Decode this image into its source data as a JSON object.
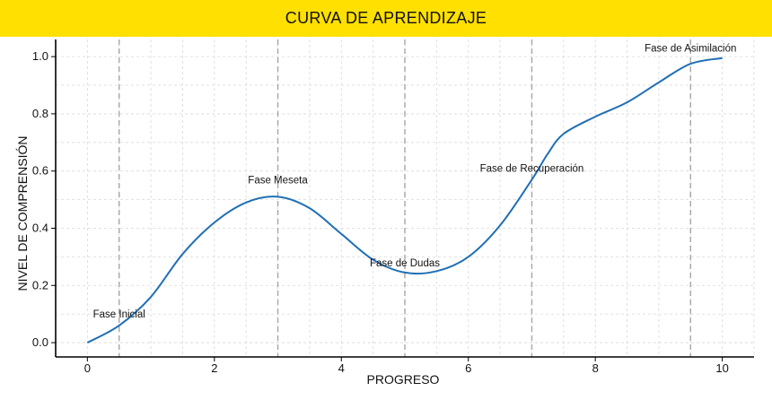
{
  "chart_data": {
    "type": "line",
    "title": "CURVA DE APRENDIZAJE",
    "xlabel": "PROGRESO",
    "ylabel": "NIVEL DE COMPRENSIÓN",
    "xlim": [
      -0.5,
      10.5
    ],
    "ylim": [
      -0.05,
      1.06
    ],
    "x_ticks": [
      0,
      2,
      4,
      6,
      8,
      10
    ],
    "x_tick_labels": [
      "0",
      "2",
      "4",
      "6",
      "8",
      "10"
    ],
    "y_ticks": [
      0.0,
      0.2,
      0.4,
      0.6,
      0.8,
      1.0
    ],
    "y_tick_labels": [
      "0.0",
      "0.2",
      "0.4",
      "0.6",
      "0.8",
      "1.0"
    ],
    "grid": true,
    "series": [
      {
        "color": "#1f6fb5",
        "x": [
          0,
          0.5,
          1,
          1.5,
          2,
          2.5,
          3,
          3.5,
          4,
          4.5,
          5,
          5.5,
          6,
          6.5,
          7,
          7.25,
          7.5,
          8,
          8.5,
          9,
          9.5,
          10
        ],
        "y": [
          0.0,
          0.06,
          0.16,
          0.31,
          0.42,
          0.49,
          0.51,
          0.47,
          0.38,
          0.29,
          0.245,
          0.25,
          0.3,
          0.41,
          0.57,
          0.66,
          0.73,
          0.79,
          0.84,
          0.91,
          0.975,
          0.995
        ]
      }
    ],
    "phase_lines_x": [
      0.5,
      3,
      5,
      7,
      9.5
    ],
    "annotations": [
      {
        "text": "Fase Inicial",
        "x": 0.5,
        "y": 0.1
      },
      {
        "text": "Fase Meseta",
        "x": 3,
        "y": 0.57
      },
      {
        "text": "Fase de Dudas",
        "x": 5,
        "y": 0.28
      },
      {
        "text": "Fase de Recuperación",
        "x": 7,
        "y": 0.61
      },
      {
        "text": "Fase de Asimilación",
        "x": 9.5,
        "y": 1.03
      }
    ]
  },
  "colors": {
    "title_bar": "#ffe000",
    "line": "#1f6fb5",
    "grid": "#d9d9d9",
    "phase_line": "#a6a6a6",
    "axis": "#000000"
  }
}
